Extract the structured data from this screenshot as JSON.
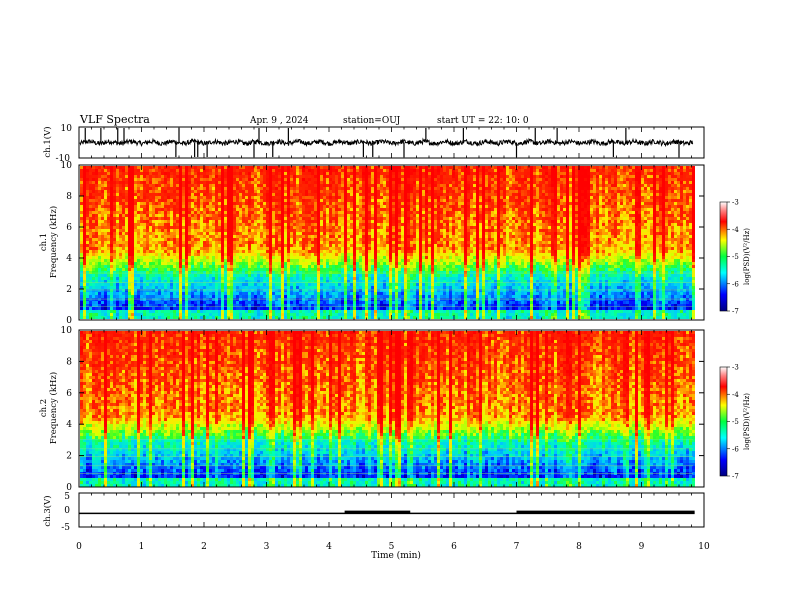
{
  "header": {
    "title": "VLF Spectra",
    "date": "Apr. 9  , 2024",
    "station": "station=OUJ",
    "start_ut": "start  UT =   22: 10: 0"
  },
  "chart_data": [
    {
      "type": "line",
      "panel": "ch1-waveform",
      "ylabel": "ch.1(V)",
      "ylim": [
        -10,
        10
      ],
      "yticks": [
        10,
        -10
      ],
      "xlim": [
        0,
        10
      ],
      "baseline": 0,
      "spikes_x": [
        0.1,
        0.35,
        0.62,
        0.72,
        1.55,
        1.6,
        1.85,
        1.9,
        2.05,
        2.8,
        2.88,
        3.1,
        3.35,
        4.55,
        4.7,
        5.2,
        5.55,
        6.15,
        7.0,
        7.3,
        7.65,
        8.55,
        8.75,
        9.6
      ],
      "color": "#000000"
    },
    {
      "type": "heatmap",
      "panel": "ch1-spectrogram",
      "ylabel": "ch.1\nFrequency  (kHz)",
      "ylim": [
        0,
        10
      ],
      "yticks": [
        0,
        2,
        4,
        6,
        8,
        10
      ],
      "xlim": [
        0,
        10
      ],
      "colorbar": {
        "label": "log(PSD)(V²/Hz)",
        "ticks": [
          -3,
          -4,
          -5,
          -6,
          -7
        ],
        "range": [
          -7,
          -3
        ]
      }
    },
    {
      "type": "heatmap",
      "panel": "ch2-spectrogram",
      "ylabel": "ch.2\nFrequency  (kHz)",
      "ylim": [
        0,
        10
      ],
      "yticks": [
        0,
        2,
        4,
        6,
        8,
        10
      ],
      "xlim": [
        0,
        10
      ],
      "colorbar": {
        "label": "log(PSD)(V²/Hz)",
        "ticks": [
          -3,
          -4,
          -5,
          -6,
          -7
        ],
        "range": [
          -7,
          -3
        ]
      }
    },
    {
      "type": "line",
      "panel": "ch3-level",
      "ylabel": "ch.3(V)",
      "ylim": [
        -5,
        5
      ],
      "yticks": [
        5,
        0,
        -5
      ],
      "xlim": [
        0,
        10
      ],
      "x": [
        0,
        4.25,
        4.25,
        5.3,
        5.3,
        7.0,
        7.0,
        9.85
      ],
      "thick_segments": [
        [
          4.25,
          5.3
        ],
        [
          7.0,
          9.85
        ]
      ],
      "level": -1,
      "color": "#000000"
    }
  ],
  "xaxis": {
    "label": "Time  (min)",
    "ticks": [
      "0",
      "1",
      "2",
      "3",
      "4",
      "5",
      "6",
      "7",
      "8",
      "9",
      "10"
    ],
    "range": [
      0,
      10
    ]
  }
}
